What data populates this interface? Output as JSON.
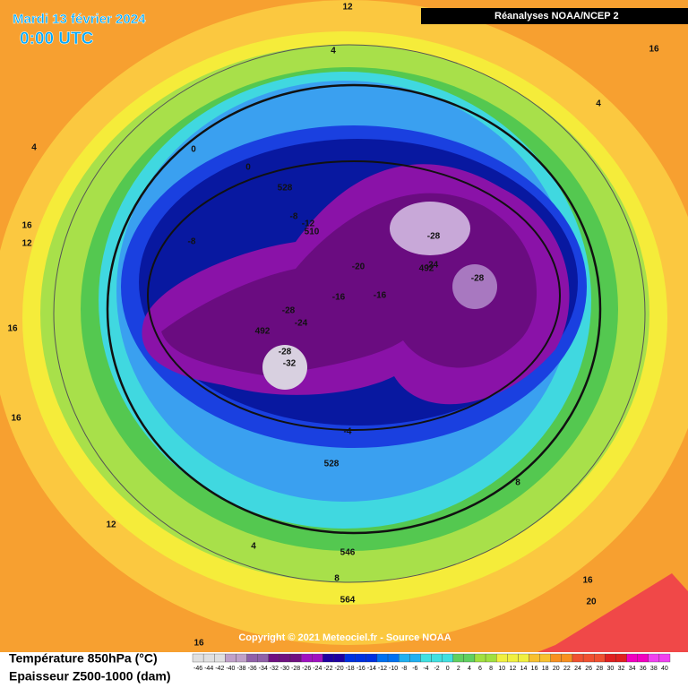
{
  "header": {
    "date": "Mardi 13 février 2024",
    "time": "0:00 UTC",
    "source": "Réanalyses NOAA/NCEP 2"
  },
  "copyright": "Copyright © 2021 Meteociel.fr - Source NOAA",
  "legend": {
    "temperature": "Température 850hPa (°C)",
    "thickness": "Epaisseur Z500-1000 (dam)",
    "scale": [
      "-46",
      "-44",
      "-42",
      "-40",
      "-38",
      "-36",
      "-34",
      "-32",
      "-30",
      "-28",
      "-26",
      "-24",
      "-22",
      "-20",
      "-18",
      "-16",
      "-14",
      "-12",
      "-10",
      "-8",
      "-6",
      "-4",
      "-2",
      "0",
      "2",
      "4",
      "6",
      "8",
      "10",
      "12",
      "14",
      "16",
      "18",
      "20",
      "22",
      "24",
      "26",
      "28",
      "30",
      "32",
      "34",
      "36",
      "38",
      "40"
    ]
  },
  "map_labels": [
    "12",
    "4",
    "16",
    "4",
    "4",
    "0",
    "0",
    "528",
    "16",
    "12",
    "-8",
    "-12",
    "510",
    "-8",
    "-28",
    "-20",
    "-24",
    "492",
    "-28",
    "-16",
    "-16",
    "-28",
    "-24",
    "16",
    "492",
    "-28",
    "-32",
    "16",
    "-4",
    "528",
    "8",
    "12",
    "4",
    "546",
    "8",
    "16",
    "564",
    "20",
    "16"
  ]
}
